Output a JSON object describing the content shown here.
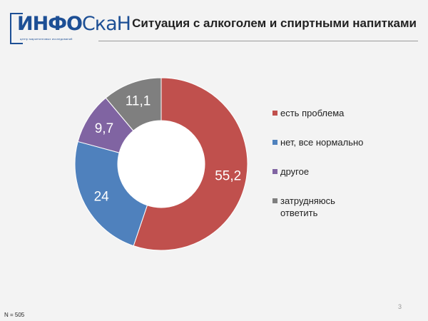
{
  "logo": {
    "text_main": "ИНФО",
    "text_rest": "СкаН",
    "subtitle": "центр маркетинговых исследований"
  },
  "header": {
    "title": "Ситуация с алкоголем и спиртными напитками"
  },
  "chart_data": {
    "type": "pie",
    "donut": true,
    "start": "top, clockwise",
    "legend_position": "right",
    "series": [
      {
        "name": "есть проблема",
        "value": 55.2,
        "label": "55,2",
        "color": "#c0504d"
      },
      {
        "name": "нет, все нормально",
        "value": 24,
        "label": "24",
        "color": "#4f81bd"
      },
      {
        "name": "другое",
        "value": 9.7,
        "label": "9,7",
        "color": "#8064a2"
      },
      {
        "name": "затрудняюсь ответить",
        "value": 11.1,
        "label": "11,1",
        "color": "#7f7f7f"
      }
    ]
  },
  "legend": {
    "items": [
      {
        "lines": [
          "есть проблема"
        ],
        "color": "#c0504d"
      },
      {
        "lines": [
          "нет, все нормально"
        ],
        "color": "#4f81bd"
      },
      {
        "lines": [
          "другое"
        ],
        "color": "#8064a2"
      },
      {
        "lines": [
          "затрудняюсь",
          "ответить"
        ],
        "color": "#7f7f7f"
      }
    ]
  },
  "footer": {
    "page_number": "3",
    "sample_size": "N = 505"
  }
}
